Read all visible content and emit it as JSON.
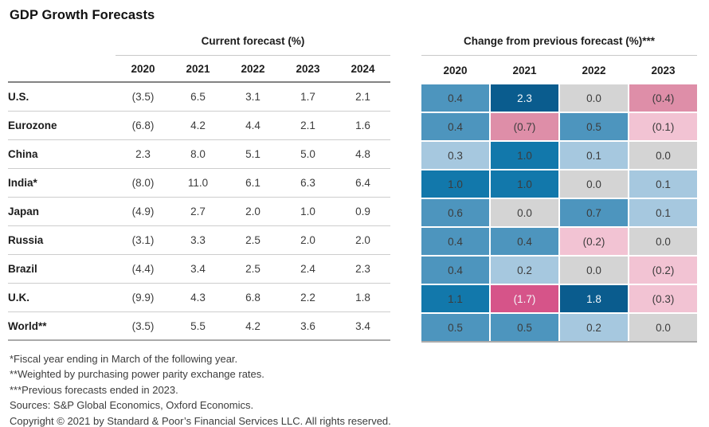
{
  "title": "GDP Growth Forecasts",
  "left_table": {
    "header": "Current forecast (%)",
    "years": [
      "2020",
      "2021",
      "2022",
      "2023",
      "2024"
    ]
  },
  "right_table": {
    "header": "Change from previous forecast (%)***",
    "years": [
      "2020",
      "2021",
      "2022",
      "2023"
    ]
  },
  "rows": [
    {
      "country": "U.S.",
      "forecast": [
        "(3.5)",
        "6.5",
        "3.1",
        "1.7",
        "2.1"
      ],
      "change": [
        {
          "value": "0.4",
          "tone": "blue-mid"
        },
        {
          "value": "2.3",
          "tone": "blue-darkest"
        },
        {
          "value": "0.0",
          "tone": "neutral"
        },
        {
          "value": "(0.4)",
          "tone": "pink-mid"
        }
      ]
    },
    {
      "country": "Eurozone",
      "forecast": [
        "(6.8)",
        "4.2",
        "4.4",
        "2.1",
        "1.6"
      ],
      "change": [
        {
          "value": "0.4",
          "tone": "blue-mid"
        },
        {
          "value": "(0.7)",
          "tone": "pink-mid"
        },
        {
          "value": "0.5",
          "tone": "blue-mid"
        },
        {
          "value": "(0.1)",
          "tone": "pink-light"
        }
      ]
    },
    {
      "country": "China",
      "forecast": [
        "2.3",
        "8.0",
        "5.1",
        "5.0",
        "4.8"
      ],
      "change": [
        {
          "value": "0.3",
          "tone": "blue-light"
        },
        {
          "value": "1.0",
          "tone": "blue-strong"
        },
        {
          "value": "0.1",
          "tone": "blue-light"
        },
        {
          "value": "0.0",
          "tone": "neutral"
        }
      ]
    },
    {
      "country": "India*",
      "forecast": [
        "(8.0)",
        "11.0",
        "6.1",
        "6.3",
        "6.4"
      ],
      "change": [
        {
          "value": "1.0",
          "tone": "blue-strong"
        },
        {
          "value": "1.0",
          "tone": "blue-strong"
        },
        {
          "value": "0.0",
          "tone": "neutral"
        },
        {
          "value": "0.1",
          "tone": "blue-light"
        }
      ]
    },
    {
      "country": "Japan",
      "forecast": [
        "(4.9)",
        "2.7",
        "2.0",
        "1.0",
        "0.9"
      ],
      "change": [
        {
          "value": "0.6",
          "tone": "blue-mid"
        },
        {
          "value": "0.0",
          "tone": "neutral"
        },
        {
          "value": "0.7",
          "tone": "blue-mid"
        },
        {
          "value": "0.1",
          "tone": "blue-light"
        }
      ]
    },
    {
      "country": "Russia",
      "forecast": [
        "(3.1)",
        "3.3",
        "2.5",
        "2.0",
        "2.0"
      ],
      "change": [
        {
          "value": "0.4",
          "tone": "blue-mid"
        },
        {
          "value": "0.4",
          "tone": "blue-mid"
        },
        {
          "value": "(0.2)",
          "tone": "pink-light"
        },
        {
          "value": "0.0",
          "tone": "neutral"
        }
      ]
    },
    {
      "country": "Brazil",
      "forecast": [
        "(4.4)",
        "3.4",
        "2.5",
        "2.4",
        "2.3"
      ],
      "change": [
        {
          "value": "0.4",
          "tone": "blue-mid"
        },
        {
          "value": "0.2",
          "tone": "blue-light"
        },
        {
          "value": "0.0",
          "tone": "neutral"
        },
        {
          "value": "(0.2)",
          "tone": "pink-light"
        }
      ]
    },
    {
      "country": "U.K.",
      "forecast": [
        "(9.9)",
        "4.3",
        "6.8",
        "2.2",
        "1.8"
      ],
      "change": [
        {
          "value": "1.1",
          "tone": "blue-strong"
        },
        {
          "value": "(1.7)",
          "tone": "pink-strong"
        },
        {
          "value": "1.8",
          "tone": "blue-darkest"
        },
        {
          "value": "(0.3)",
          "tone": "pink-light"
        }
      ]
    },
    {
      "country": "World**",
      "forecast": [
        "(3.5)",
        "5.5",
        "4.2",
        "3.6",
        "3.4"
      ],
      "change": [
        {
          "value": "0.5",
          "tone": "blue-mid"
        },
        {
          "value": "0.5",
          "tone": "blue-mid"
        },
        {
          "value": "0.2",
          "tone": "blue-light"
        },
        {
          "value": "0.0",
          "tone": "neutral"
        }
      ]
    }
  ],
  "footnotes": [
    "*Fiscal year ending in March of the following year.",
    "**Weighted by purchasing power parity exchange rates.",
    "***Previous forecasts ended in 2023.",
    "Sources: S&P Global Economics, Oxford Economics.",
    "Copyright © 2021 by Standard & Poor’s Financial Services LLC. All rights reserved."
  ],
  "colors": {
    "blue-light": "#A6C8DF",
    "blue-mid": "#4D95BE",
    "blue-strong": "#1278AB",
    "blue-darkest": "#0A5C8E",
    "neutral": "#D4D4D4",
    "pink-light": "#F2C3D3",
    "pink-mid": "#DE8EA8",
    "pink-strong": "#D65489",
    "white_text_tones": [
      "blue-darkest",
      "pink-strong"
    ]
  },
  "chart_data": [
    {
      "type": "table",
      "title": "Current forecast (%)",
      "columns": [
        "2020",
        "2021",
        "2022",
        "2023",
        "2024"
      ],
      "rows": [
        "U.S.",
        "Eurozone",
        "China",
        "India*",
        "Japan",
        "Russia",
        "Brazil",
        "U.K.",
        "World**"
      ],
      "values": [
        [
          -3.5,
          6.5,
          3.1,
          1.7,
          2.1
        ],
        [
          -6.8,
          4.2,
          4.4,
          2.1,
          1.6
        ],
        [
          2.3,
          8.0,
          5.1,
          5.0,
          4.8
        ],
        [
          -8.0,
          11.0,
          6.1,
          6.3,
          6.4
        ],
        [
          -4.9,
          2.7,
          2.0,
          1.0,
          0.9
        ],
        [
          -3.1,
          3.3,
          2.5,
          2.0,
          2.0
        ],
        [
          -4.4,
          3.4,
          2.5,
          2.4,
          2.3
        ],
        [
          -9.9,
          4.3,
          6.8,
          2.2,
          1.8
        ],
        [
          -3.5,
          5.5,
          4.2,
          3.6,
          3.4
        ]
      ],
      "note": "Parentheses in the rendered table denote negative values."
    },
    {
      "type": "heatmap",
      "title": "Change from previous forecast (%)***",
      "columns": [
        "2020",
        "2021",
        "2022",
        "2023"
      ],
      "rows": [
        "U.S.",
        "Eurozone",
        "China",
        "India*",
        "Japan",
        "Russia",
        "Brazil",
        "U.K.",
        "World**"
      ],
      "values": [
        [
          0.4,
          2.3,
          0.0,
          -0.4
        ],
        [
          0.4,
          -0.7,
          0.5,
          -0.1
        ],
        [
          0.3,
          1.0,
          0.1,
          0.0
        ],
        [
          1.0,
          1.0,
          0.0,
          0.1
        ],
        [
          0.6,
          0.0,
          0.7,
          0.1
        ],
        [
          0.4,
          0.4,
          -0.2,
          0.0
        ],
        [
          0.4,
          0.2,
          0.0,
          -0.2
        ],
        [
          1.1,
          -1.7,
          1.8,
          -0.3
        ],
        [
          0.5,
          0.5,
          0.2,
          0.0
        ]
      ],
      "color_coding": "blue = upward revision, pink = downward revision, gray = no change"
    }
  ]
}
